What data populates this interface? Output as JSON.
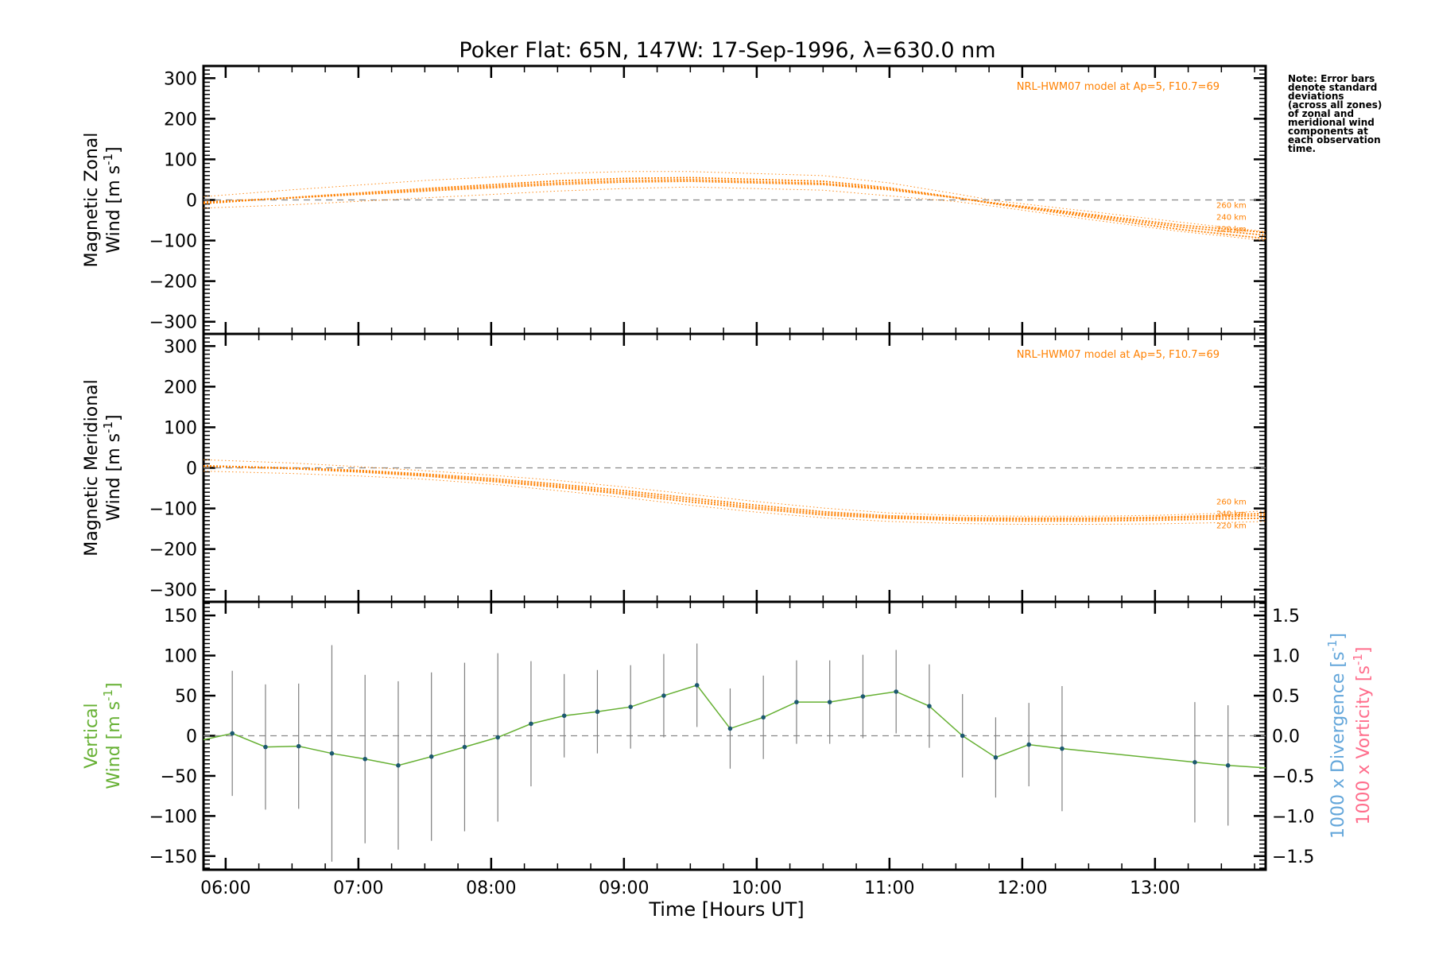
{
  "title": "Poker Flat: 65N, 147W: 17-Sep-1996, λ=630.0 nm",
  "note_lines": [
    "Note: Error bars",
    "denote standard",
    "deviations",
    "(across all zones)",
    "of zonal and",
    "meridional wind",
    "components at",
    "each observation",
    "time."
  ],
  "colors": {
    "model": "#ff8000",
    "vertical": "#66b033",
    "divergence": "#63a6da",
    "vorticity": "#ff6e8c",
    "errorbar": "#808080",
    "marker": "#1d5970",
    "zero": "#888888"
  },
  "chart_data": [
    {
      "type": "line",
      "panel": "zonal",
      "ylabel_line1": "Magnetic Zonal",
      "ylabel_line2": "Wind [m s",
      "ylabel_sup": "-1",
      "ylabel_end": "]",
      "xlim": [
        5.8333,
        13.8333
      ],
      "ylim": [
        -330,
        330
      ],
      "yticks": [
        300,
        200,
        100,
        0,
        -100,
        -200,
        -300
      ],
      "model_label": "NRL-HWM07 model at Ap=5, F10.7=69",
      "altitude_labels": [
        "260 km",
        "240 km",
        "220 km"
      ],
      "x": [
        5.8333,
        6.5,
        7.5,
        8.5,
        9.0,
        9.5,
        10.5,
        11.0,
        11.5,
        11.8,
        12.5,
        13.2,
        13.8333
      ],
      "series": [
        {
          "name": "260 km",
          "values": [
            -5,
            5,
            22,
            38,
            44,
            46,
            38,
            25,
            5,
            -8,
            -35,
            -62,
            -80
          ]
        },
        {
          "name": "240 km",
          "values": [
            -7,
            5,
            25,
            42,
            48,
            50,
            41,
            27,
            5,
            -9,
            -38,
            -67,
            -87
          ]
        },
        {
          "name": "220 km",
          "values": [
            -9,
            6,
            28,
            47,
            53,
            55,
            46,
            30,
            6,
            -10,
            -42,
            -73,
            -95
          ]
        },
        {
          "name": "upper",
          "style": "envelope",
          "values": [
            8,
            25,
            48,
            65,
            70,
            70,
            60,
            42,
            15,
            -2,
            -28,
            -55,
            -78
          ]
        },
        {
          "name": "lower",
          "style": "envelope",
          "values": [
            -20,
            -12,
            5,
            22,
            28,
            32,
            24,
            10,
            -4,
            -16,
            -48,
            -78,
            -100
          ]
        }
      ]
    },
    {
      "type": "line",
      "panel": "meridional",
      "ylabel_line1": "Magnetic Meridional",
      "ylabel_line2": "Wind [m s",
      "ylabel_sup": "-1",
      "ylabel_end": "]",
      "xlim": [
        5.8333,
        13.8333
      ],
      "ylim": [
        -330,
        330
      ],
      "yticks": [
        300,
        200,
        100,
        0,
        -100,
        -200,
        -300
      ],
      "model_label": "NRL-HWM07 model at Ap=5, F10.7=69",
      "altitude_labels": [
        "260 km",
        "240 km",
        "220 km"
      ],
      "x": [
        5.8333,
        6.5,
        7.0,
        7.5,
        8.0,
        8.5,
        9.0,
        9.5,
        10.0,
        10.5,
        11.0,
        11.5,
        12.0,
        12.5,
        13.0,
        13.5,
        13.8333
      ],
      "series": [
        {
          "name": "260 km",
          "values": [
            5,
            0,
            -6,
            -15,
            -26,
            -40,
            -56,
            -74,
            -92,
            -108,
            -118,
            -123,
            -124,
            -124,
            -122,
            -117,
            -112
          ]
        },
        {
          "name": "240 km",
          "values": [
            5,
            -1,
            -8,
            -18,
            -30,
            -44,
            -61,
            -79,
            -97,
            -112,
            -121,
            -126,
            -127,
            -127,
            -125,
            -121,
            -117
          ]
        },
        {
          "name": "220 km",
          "values": [
            4,
            -2,
            -10,
            -20,
            -33,
            -48,
            -65,
            -84,
            -101,
            -116,
            -124,
            -129,
            -131,
            -131,
            -129,
            -126,
            -124
          ]
        },
        {
          "name": "upper",
          "style": "envelope",
          "values": [
            20,
            12,
            3,
            -7,
            -18,
            -31,
            -47,
            -65,
            -83,
            -99,
            -111,
            -117,
            -119,
            -119,
            -117,
            -112,
            -106
          ]
        },
        {
          "name": "lower",
          "style": "envelope",
          "values": [
            -8,
            -14,
            -20,
            -28,
            -40,
            -56,
            -73,
            -92,
            -109,
            -123,
            -132,
            -137,
            -139,
            -139,
            -138,
            -135,
            -132
          ]
        }
      ]
    },
    {
      "type": "line",
      "panel": "vertical",
      "ylabel_line1": "Vertical",
      "ylabel_line2": "Wind [m s",
      "ylabel_sup": "-1",
      "ylabel_end": "]",
      "right_label_div": "1000 x Divergence [s",
      "right_label_vort": "1000 x Vorticity [s",
      "right_label_sup": "-1",
      "right_label_end": "]",
      "xlim": [
        5.8333,
        13.8333
      ],
      "ylim": [
        -167,
        167
      ],
      "yticks": [
        150,
        100,
        50,
        0,
        -50,
        -100,
        -150
      ],
      "y2lim": [
        -1.67,
        1.67
      ],
      "y2ticks": [
        "1.5",
        "1.0",
        "0.5",
        "0.0",
        "-0.5",
        "-1.0",
        "-1.5"
      ],
      "y2tick_values": [
        1.5,
        1.0,
        0.5,
        0.0,
        -0.5,
        -1.0,
        -1.5
      ],
      "xticks": [
        "06:00",
        "07:00",
        "08:00",
        "09:00",
        "10:00",
        "11:00",
        "12:00",
        "13:00"
      ],
      "xtick_values": [
        6,
        7,
        8,
        9,
        10,
        11,
        12,
        13
      ],
      "xlabel": "Time [Hours UT]",
      "x": [
        5.8333,
        6.05,
        6.3,
        6.55,
        6.8,
        7.05,
        7.3,
        7.55,
        7.8,
        8.05,
        8.3,
        8.55,
        8.8,
        9.05,
        9.3,
        9.55,
        9.8,
        10.05,
        10.3,
        10.55,
        10.8,
        11.05,
        11.3,
        11.55,
        11.8,
        12.05,
        12.3,
        13.3,
        13.55,
        13.8333
      ],
      "values": [
        -5,
        3,
        -14,
        -13,
        -22,
        -29,
        -37,
        -26,
        -14,
        -2,
        15,
        25,
        30,
        36,
        50,
        63,
        9,
        23,
        42,
        42,
        49,
        55,
        37,
        0,
        -27,
        -11,
        -16,
        -33,
        -37,
        -40
      ],
      "error": [
        null,
        78,
        78,
        78,
        135,
        105,
        105,
        105,
        105,
        105,
        78,
        52,
        52,
        52,
        52,
        52,
        50,
        52,
        52,
        52,
        52,
        52,
        52,
        52,
        50,
        52,
        78,
        75,
        75,
        null
      ]
    }
  ]
}
